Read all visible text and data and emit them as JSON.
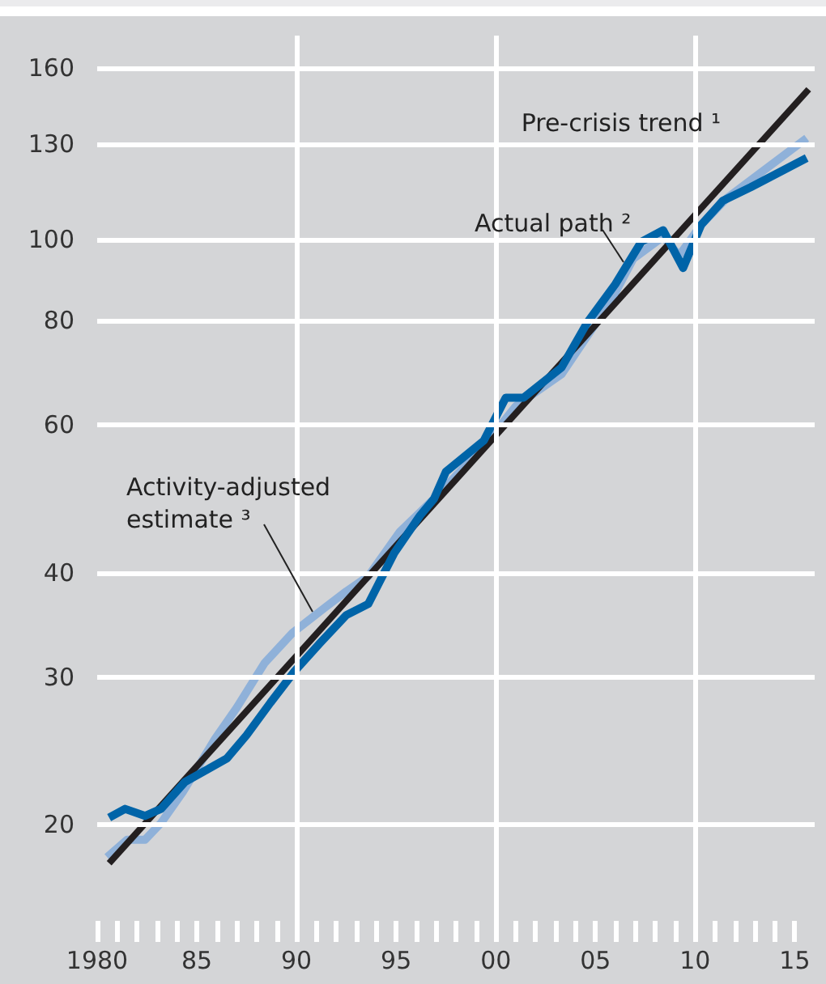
{
  "chart_data": {
    "type": "line",
    "log": "y",
    "grid": true,
    "marker": "none",
    "line_style": "solid",
    "xlim": [
      1980,
      2016
    ],
    "ylim": [
      14.5,
      175
    ],
    "yticks": [
      20,
      30,
      40,
      60,
      80,
      100,
      130,
      160
    ],
    "xticks": [
      {
        "value": 1980,
        "label": "1980"
      },
      {
        "value": 1981,
        "label": null
      },
      {
        "value": 1982,
        "label": null
      },
      {
        "value": 1983,
        "label": null
      },
      {
        "value": 1984,
        "label": null
      },
      {
        "value": 1985,
        "label": "85"
      },
      {
        "value": 1986,
        "label": null
      },
      {
        "value": 1987,
        "label": null
      },
      {
        "value": 1988,
        "label": null
      },
      {
        "value": 1989,
        "label": null
      },
      {
        "value": 1990,
        "label": "90"
      },
      {
        "value": 1991,
        "label": null
      },
      {
        "value": 1992,
        "label": null
      },
      {
        "value": 1993,
        "label": null
      },
      {
        "value": 1994,
        "label": null
      },
      {
        "value": 1995,
        "label": "95"
      },
      {
        "value": 1996,
        "label": null
      },
      {
        "value": 1997,
        "label": null
      },
      {
        "value": 1998,
        "label": null
      },
      {
        "value": 1999,
        "label": null
      },
      {
        "value": 2000,
        "label": "00"
      },
      {
        "value": 2001,
        "label": null
      },
      {
        "value": 2002,
        "label": null
      },
      {
        "value": 2003,
        "label": null
      },
      {
        "value": 2004,
        "label": null
      },
      {
        "value": 2005,
        "label": "05"
      },
      {
        "value": 2006,
        "label": null
      },
      {
        "value": 2007,
        "label": null
      },
      {
        "value": 2008,
        "label": null
      },
      {
        "value": 2009,
        "label": null
      },
      {
        "value": 2010,
        "label": "10"
      },
      {
        "value": 2011,
        "label": null
      },
      {
        "value": 2012,
        "label": null
      },
      {
        "value": 2013,
        "label": null
      },
      {
        "value": 2014,
        "label": null
      },
      {
        "value": 2015,
        "label": "15"
      }
    ],
    "series": [
      {
        "name": "Activity-adjusted estimate ³",
        "color": "#8fb1d9",
        "x": [
          1980.5,
          1981.5,
          1982.4,
          1983.2,
          1984.3,
          1985.9,
          1987.0,
          1988.4,
          1989.8,
          1991.4,
          1992.5,
          1993.6,
          1995.2,
          1996.9,
          1999.4,
          2001.0,
          2003.3,
          2005.8,
          2006.9,
          2008.4,
          2009.2,
          2010.3,
          2011.6,
          2015.6
        ],
        "values": [
          18.3,
          19.2,
          19.2,
          20.1,
          21.9,
          25.3,
          27.6,
          31.2,
          33.9,
          36.3,
          38.0,
          39.6,
          44.8,
          49.0,
          56.6,
          63.2,
          69,
          84.6,
          94.8,
          100.7,
          95.6,
          104,
          112,
          132
        ]
      },
      {
        "name": "Pre-crisis trend ¹",
        "color": "#231f20",
        "x": [
          1980.6,
          2015.7
        ],
        "values": [
          18,
          151
        ]
      },
      {
        "name": "Actual path ²",
        "color": "#0064a8",
        "x": [
          1980.6,
          1981.4,
          1982.4,
          1983.2,
          1984.4,
          1985.4,
          1986.5,
          1987.5,
          1988.7,
          1989.9,
          1991.2,
          1992.5,
          1993.6,
          1994.9,
          1996.2,
          1996.9,
          1997.5,
          1999.4,
          2000.5,
          2001.4,
          2003.3,
          2004.6,
          2006.0,
          2007.3,
          2008.4,
          2009.4,
          2010.3,
          2011.4,
          2012.8,
          2015.6
        ],
        "values": [
          20.4,
          20.9,
          20.5,
          20.9,
          22.5,
          23.2,
          24.0,
          25.6,
          28.0,
          30.5,
          33.0,
          35.6,
          36.7,
          42.2,
          46.8,
          49.0,
          52.8,
          57.5,
          64.7,
          64.7,
          70.3,
          79.6,
          88.4,
          99.3,
          102.5,
          92.4,
          104,
          111.2,
          115.4,
          125.0
        ]
      }
    ]
  }
}
